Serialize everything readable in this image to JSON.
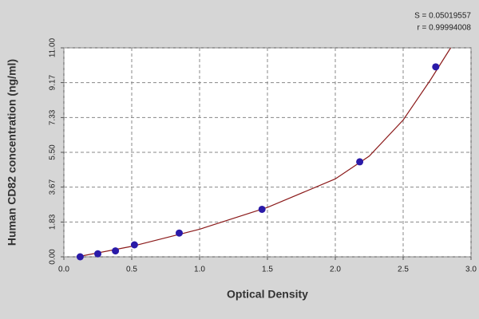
{
  "chart_data": {
    "type": "scatter",
    "xlabel": "Optical Density",
    "ylabel": "Human CD82 concentration (ng/ml)",
    "annotations": [
      "S = 0.05019557",
      "r = 0.99994008"
    ],
    "xlim": [
      0,
      3
    ],
    "ylim": [
      0,
      11
    ],
    "xticks": [
      {
        "value": 0,
        "label": "0.0"
      },
      0.5,
      {
        "value": 1,
        "label": "1.0"
      },
      1.5,
      {
        "value": 2,
        "label": "2.0"
      },
      2.5,
      {
        "value": 3,
        "label": "3.0"
      }
    ],
    "yticks": [
      {
        "value": 0,
        "label": "0.00"
      },
      1.83,
      3.67,
      {
        "value": 5.5,
        "label": "5.50"
      },
      7.33,
      9.17,
      {
        "value": 11,
        "label": "11.00"
      }
    ],
    "grid": true,
    "series": [
      {
        "type": "scatter",
        "color": "#2a1aa8",
        "x": [
          0.12,
          0.25,
          0.38,
          0.52,
          0.85,
          1.46,
          2.18,
          2.74
        ],
        "values": [
          0,
          0.16,
          0.31,
          0.63,
          1.25,
          2.5,
          5,
          10
        ]
      },
      {
        "type": "line",
        "color": "#8b1a1a",
        "x": [
          0.1,
          0.5,
          1.0,
          1.5,
          2.0,
          2.25,
          2.5,
          2.7,
          2.85
        ],
        "values": [
          0,
          0.55,
          1.45,
          2.6,
          4.1,
          5.3,
          7.2,
          9.3,
          11
        ]
      }
    ]
  }
}
